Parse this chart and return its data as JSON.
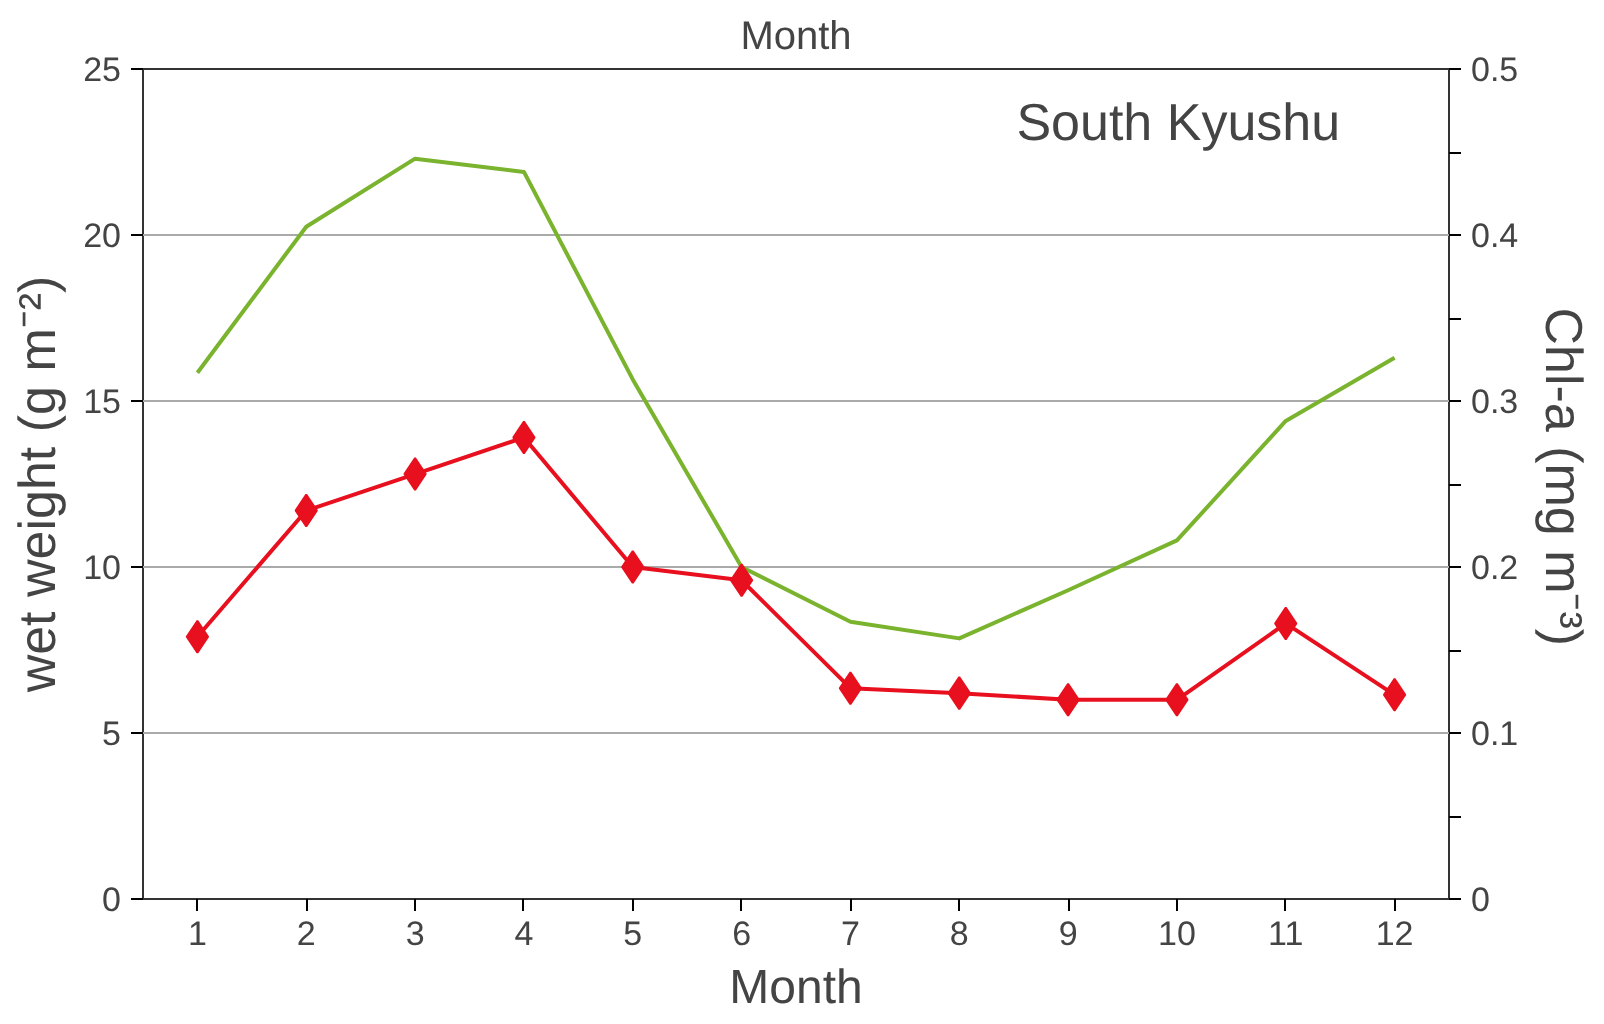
{
  "chart_data": {
    "type": "line",
    "title": "Month",
    "xlabel": "Month",
    "ylabel": "wet weight (g m⁻²)",
    "y2label": "Chl-a  (mg m⁻³)",
    "annotations": [
      "South Kyushu"
    ],
    "x": [
      1,
      2,
      3,
      4,
      5,
      6,
      7,
      8,
      9,
      10,
      11,
      12
    ],
    "xlim": [
      0.5,
      12.5
    ],
    "xticks": [
      1,
      2,
      3,
      4,
      5,
      6,
      7,
      8,
      9,
      10,
      11,
      12
    ],
    "ylim": [
      0,
      25
    ],
    "yticks": [
      0,
      5,
      10,
      15,
      20,
      25
    ],
    "y2lim": [
      0,
      0.5
    ],
    "y2ticks": [
      0,
      {
        "value": 0.05,
        "label": null
      },
      0.1,
      {
        "value": 0.15,
        "label": null
      },
      0.2,
      {
        "value": 0.25,
        "label": null
      },
      0.3,
      {
        "value": 0.35,
        "label": null
      },
      0.4,
      {
        "value": 0.45,
        "label": null
      },
      0.5
    ],
    "grid": "y",
    "series": [
      {
        "color": "#7ab32e",
        "marker": "none",
        "axis": "y2",
        "values": [
          0.317,
          0.405,
          0.446,
          0.438,
          0.313,
          0.2,
          0.167,
          0.157,
          0.186,
          0.216,
          0.288,
          0.326
        ]
      },
      {
        "color": "#e8101e",
        "marker": "diamond",
        "values": [
          7.9,
          11.7,
          12.8,
          13.9,
          10.0,
          9.6,
          6.35,
          6.2,
          6.0,
          6.0,
          8.3,
          6.15
        ]
      }
    ]
  }
}
